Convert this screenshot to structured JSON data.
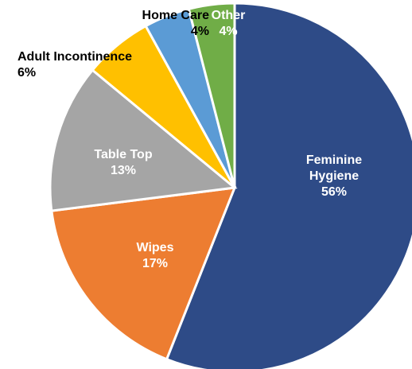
{
  "chart_data": {
    "type": "pie",
    "categories": [
      "Feminine Hygiene",
      "Wipes",
      "Table Top",
      "Adult Incontinence",
      "Home Care",
      "Other"
    ],
    "values": [
      56,
      17,
      13,
      6,
      4,
      4
    ],
    "value_labels": [
      "56%",
      "17%",
      "13%",
      "6%",
      "4%",
      "4%"
    ],
    "colors": [
      "#2e4b87",
      "#ed7d31",
      "#a5a5a5",
      "#ffc000",
      "#5b9bd5",
      "#70ad47"
    ]
  }
}
